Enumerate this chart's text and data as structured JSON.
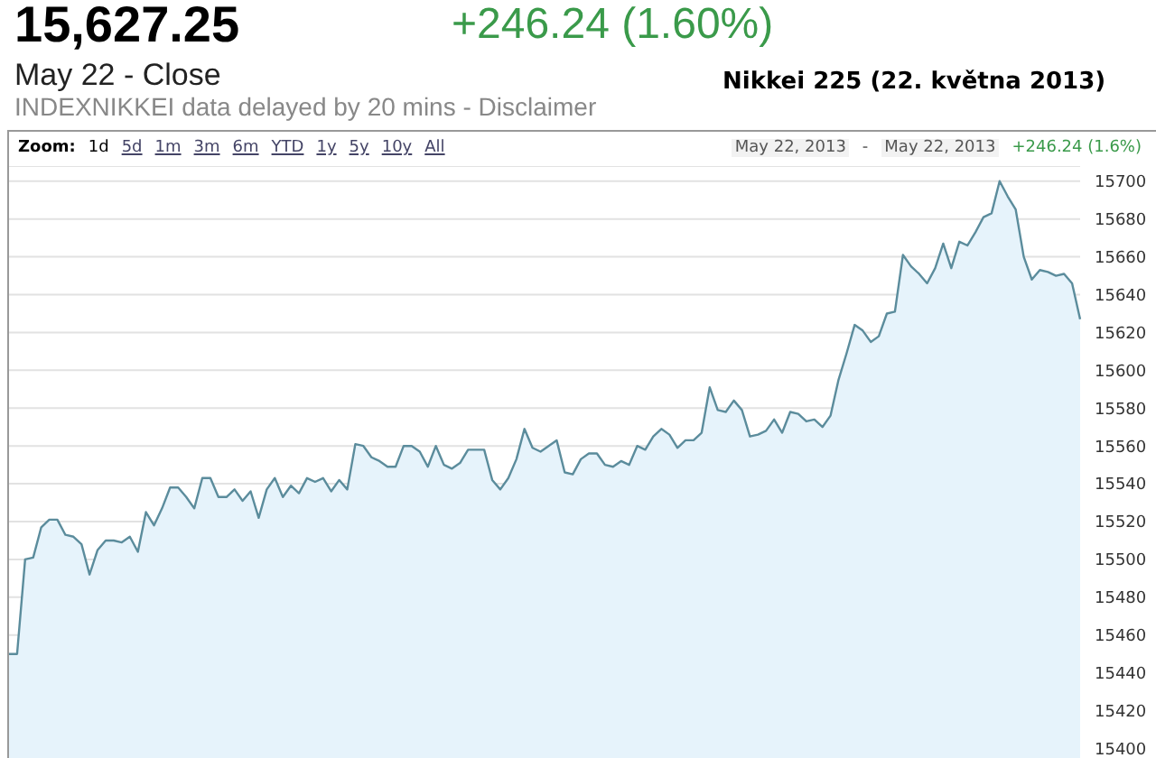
{
  "chart_data": {
    "type": "area",
    "title": "Nikkei 225 (22. května 2013)",
    "annotations": [
      "15,627.25",
      "+246.24 (1.60%)",
      "May 22 - Close",
      "INDEXNIKKEI data delayed by 20 mins - Disclaimer",
      "Zoom:",
      "1d",
      "5d",
      "1m",
      "3m",
      "6m",
      "YTD",
      "1y",
      "5y",
      "10y",
      "All",
      "May 22, 2013",
      "-",
      "May 22, 2013",
      "+246.24 (1.6%)"
    ],
    "categories": [
      null,
      null,
      null,
      null,
      null,
      null,
      null,
      null,
      null,
      null,
      null,
      null,
      null,
      null,
      null,
      null,
      null,
      null,
      null,
      null,
      null,
      null,
      null,
      null,
      null,
      null,
      null,
      null,
      null,
      null,
      null,
      null,
      null,
      null,
      null,
      null,
      null,
      null,
      null,
      null,
      null,
      null,
      null,
      null,
      null,
      null,
      null,
      null,
      null,
      null,
      null,
      null,
      null,
      null,
      null,
      null,
      null,
      null,
      null,
      null,
      null,
      null,
      null,
      null,
      null,
      null,
      null,
      null,
      null,
      null,
      null,
      null,
      null,
      null,
      null,
      null,
      null,
      null,
      null,
      null,
      null,
      null,
      null,
      null,
      null,
      null,
      null,
      null,
      null,
      null,
      null,
      null,
      null,
      null,
      null,
      null,
      null,
      null,
      null,
      null,
      null,
      null,
      null,
      null,
      null,
      null,
      null,
      null,
      null,
      null,
      null,
      null,
      null,
      null,
      null,
      null,
      null,
      null,
      null,
      null,
      null,
      null,
      null,
      null,
      null,
      null,
      null,
      null,
      null,
      null,
      null,
      null,
      null,
      null
    ],
    "series": [
      {
        "color": "#5b8c9c",
        "values": [
          15450,
          15450,
          15500,
          15501,
          15517,
          15521,
          15521,
          15513,
          15512,
          15508,
          15492,
          15505,
          15510,
          15510,
          15509,
          15512,
          15504,
          15525,
          15518,
          15527,
          15538,
          15538,
          15533,
          15527,
          15543,
          15543,
          15533,
          15533,
          15537,
          15531,
          15536,
          15522,
          15537,
          15543,
          15533,
          15539,
          15535,
          15543,
          15541,
          15543,
          15536,
          15542,
          15537,
          15561,
          15560,
          15554,
          15552,
          15549,
          15549,
          15560,
          15560,
          15557,
          15549,
          15560,
          15550,
          15548,
          15551,
          15558,
          15558,
          15558,
          15542,
          15537,
          15543,
          15553,
          15569,
          15559,
          15557,
          15560,
          15563,
          15546,
          15545,
          15553,
          15556,
          15556,
          15550,
          15549,
          15552,
          15550,
          15560,
          15558,
          15565,
          15569,
          15566,
          15559,
          15563,
          15563,
          15567,
          15591,
          15579,
          15578,
          15584,
          15579,
          15565,
          15566,
          15568,
          15574,
          15567,
          15578,
          15577,
          15573,
          15574,
          15570,
          15576,
          15595,
          15609,
          15624,
          15621,
          15615,
          15618,
          15630,
          15631,
          15661,
          15655,
          15651,
          15646,
          15654,
          15667,
          15654,
          15668,
          15666,
          15673,
          15681,
          15683,
          15700,
          15692,
          15685,
          15660,
          15648,
          15653,
          15652,
          15650,
          15651,
          15646,
          15627
        ]
      }
    ],
    "ylim": [
      15395,
      15708
    ],
    "yticks": [
      15400,
      15420,
      15440,
      15460,
      15480,
      15500,
      15520,
      15540,
      15560,
      15580,
      15600,
      15620,
      15640,
      15660,
      15680,
      15700
    ],
    "grid": "y"
  }
}
